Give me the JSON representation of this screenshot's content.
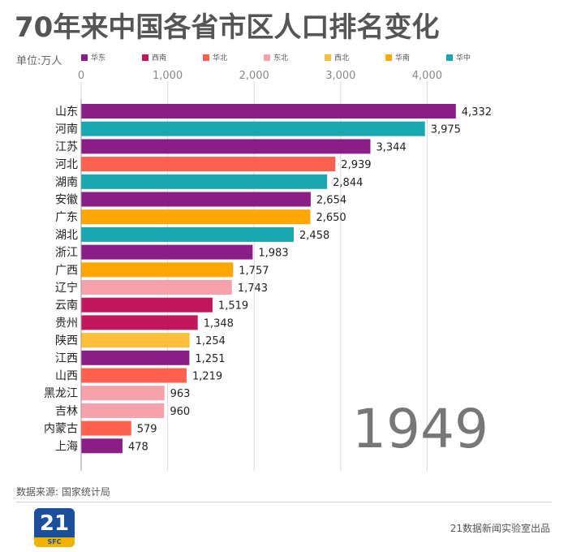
{
  "title": "70年来中国各省市区人口排名变化",
  "unit_label": "单位:万人",
  "legend": [
    {
      "name": "华东",
      "color": "#8b1e86"
    },
    {
      "name": "西南",
      "color": "#c2185b"
    },
    {
      "name": "华北",
      "color": "#ff6150"
    },
    {
      "name": "东北",
      "color": "#f6a2ad"
    },
    {
      "name": "西北",
      "color": "#fbbf3a"
    },
    {
      "name": "华南",
      "color": "#ffa600"
    },
    {
      "name": "华中",
      "color": "#19a8b0"
    }
  ],
  "year": "1949",
  "source": "数据来源: 国家统计局",
  "logo": {
    "number": "21",
    "sub": "SFC"
  },
  "credit": "21数据新闻实验室出品",
  "chart_data": {
    "type": "bar",
    "orientation": "horizontal",
    "xlim": [
      0,
      4500
    ],
    "xticks": [
      0,
      1000,
      2000,
      3000,
      4000
    ],
    "xtick_labels": [
      "0",
      "1,000",
      "2,000",
      "3,000",
      "4,000"
    ],
    "categories": [
      "山东",
      "河南",
      "江苏",
      "河北",
      "湖南",
      "安徽",
      "广东",
      "湖北",
      "浙江",
      "广西",
      "辽宁",
      "云南",
      "贵州",
      "陕西",
      "江西",
      "山西",
      "黑龙江",
      "吉林",
      "内蒙古",
      "上海"
    ],
    "values": [
      4332,
      3975,
      3344,
      2939,
      2844,
      2654,
      2650,
      2458,
      1983,
      1757,
      1743,
      1519,
      1348,
      1254,
      1251,
      1219,
      963,
      960,
      579,
      478
    ],
    "value_labels": [
      "4,332",
      "3,975",
      "3,344",
      "2,939",
      "2,844",
      "2,654",
      "2,650",
      "2,458",
      "1,983",
      "1,757",
      "1,743",
      "1,519",
      "1,348",
      "1,254",
      "1,251",
      "1,219",
      "963",
      "960",
      "579",
      "478"
    ],
    "regions": [
      "华东",
      "华中",
      "华东",
      "华北",
      "华中",
      "华东",
      "华南",
      "华中",
      "华东",
      "华南",
      "东北",
      "西南",
      "西南",
      "西北",
      "华东",
      "华北",
      "东北",
      "东北",
      "华北",
      "华东"
    ]
  }
}
